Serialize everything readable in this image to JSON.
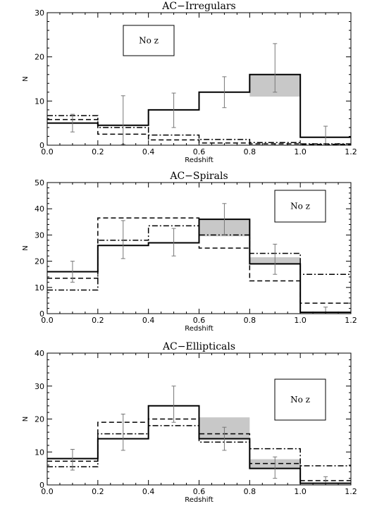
{
  "chart_data": [
    {
      "type": "histogram",
      "title": "AC−Irregulars",
      "xlabel": "Redshift",
      "ylabel": "N",
      "xlim": [
        0.0,
        1.2
      ],
      "ylim": [
        0,
        30
      ],
      "xticks": [
        "0.0",
        "0.2",
        "0.4",
        "0.6",
        "0.8",
        "1.0",
        "1.2"
      ],
      "yticks": [
        "0",
        "10",
        "20",
        "30"
      ],
      "legend_box_label": "No z",
      "legend_box_position": "top-left",
      "bin_edges": [
        0.0,
        0.2,
        0.4,
        0.6,
        0.8,
        1.0,
        1.2
      ],
      "series": [
        {
          "style": "solid",
          "values": [
            5,
            4.5,
            8,
            12,
            16,
            1.8
          ]
        },
        {
          "style": "dashed",
          "values": [
            5.8,
            2.5,
            1.2,
            0.5,
            0.3,
            0.2
          ]
        },
        {
          "style": "dashdot",
          "values": [
            6.7,
            4,
            2.3,
            1.3,
            0.6,
            0.3
          ]
        }
      ],
      "shaded_no_z": [
        {
          "bin": 4,
          "from": 11,
          "to": 16
        }
      ],
      "error_bars": [
        {
          "x": 0.1,
          "low": 3,
          "high": 7
        },
        {
          "x": 0.3,
          "low": 0.2,
          "high": 11.2
        },
        {
          "x": 0.5,
          "low": 4,
          "high": 11.8
        },
        {
          "x": 0.7,
          "low": 8.5,
          "high": 15.5
        },
        {
          "x": 0.9,
          "low": 12,
          "high": 23
        },
        {
          "x": 1.1,
          "low": 0.2,
          "high": 4.3
        }
      ]
    },
    {
      "type": "histogram",
      "title": "AC−Spirals",
      "xlabel": "Redshift",
      "ylabel": "N",
      "xlim": [
        0.0,
        1.2
      ],
      "ylim": [
        0,
        50
      ],
      "xticks": [
        "0.0",
        "0.2",
        "0.4",
        "0.6",
        "0.8",
        "1.0",
        "1.2"
      ],
      "yticks": [
        "0",
        "10",
        "20",
        "30",
        "40",
        "50"
      ],
      "legend_box_label": "No z",
      "legend_box_position": "top-right",
      "bin_edges": [
        0.0,
        0.2,
        0.4,
        0.6,
        0.8,
        1.0,
        1.2
      ],
      "series": [
        {
          "style": "solid",
          "values": [
            16,
            26,
            27,
            36,
            19,
            0.5
          ]
        },
        {
          "style": "dashed",
          "values": [
            13.5,
            36.5,
            36.5,
            25,
            12.5,
            4
          ]
        },
        {
          "style": "dashdot",
          "values": [
            9,
            28,
            33.5,
            30,
            23,
            15
          ]
        }
      ],
      "shaded_no_z": [
        {
          "bin": 3,
          "from": 29.5,
          "to": 36
        },
        {
          "bin": 4,
          "from": 19,
          "to": 21.5
        }
      ],
      "error_bars": [
        {
          "x": 0.1,
          "low": 12,
          "high": 20
        },
        {
          "x": 0.3,
          "low": 21,
          "high": 35.5
        },
        {
          "x": 0.5,
          "low": 22,
          "high": 32.5
        },
        {
          "x": 0.7,
          "low": 30,
          "high": 42
        },
        {
          "x": 0.9,
          "low": 15,
          "high": 26.5
        },
        {
          "x": 1.1,
          "low": 0,
          "high": 2.5
        }
      ]
    },
    {
      "type": "histogram",
      "title": "AC−Ellipticals",
      "xlabel": "Redshift",
      "ylabel": "N",
      "xlim": [
        0.0,
        1.2
      ],
      "ylim": [
        0,
        40
      ],
      "xticks": [
        "0.0",
        "0.2",
        "0.4",
        "0.6",
        "0.8",
        "1.0",
        "1.2"
      ],
      "yticks": [
        "0",
        "10",
        "20",
        "30",
        "40"
      ],
      "legend_box_label": "No z",
      "legend_box_position": "top-right",
      "bin_edges": [
        0.0,
        0.2,
        0.4,
        0.6,
        0.8,
        1.0,
        1.2
      ],
      "series": [
        {
          "style": "solid",
          "values": [
            8,
            14,
            24,
            14,
            5,
            0.5
          ]
        },
        {
          "style": "dashed",
          "values": [
            7.2,
            19,
            20,
            15.5,
            6.5,
            1.3
          ]
        },
        {
          "style": "dashdot",
          "values": [
            5.5,
            15.5,
            18,
            13,
            11,
            5.8
          ]
        }
      ],
      "shaded_no_z": [
        {
          "bin": 3,
          "from": 14,
          "to": 20.5
        },
        {
          "bin": 4,
          "from": 5,
          "to": 7.8
        }
      ],
      "error_bars": [
        {
          "x": 0.1,
          "low": 4.5,
          "high": 10.8
        },
        {
          "x": 0.3,
          "low": 10.5,
          "high": 21.5
        },
        {
          "x": 0.5,
          "low": 19,
          "high": 30
        },
        {
          "x": 0.7,
          "low": 10.5,
          "high": 17.5
        },
        {
          "x": 0.9,
          "low": 2,
          "high": 8.5
        },
        {
          "x": 1.1,
          "low": 0,
          "high": 2.5
        }
      ]
    }
  ]
}
